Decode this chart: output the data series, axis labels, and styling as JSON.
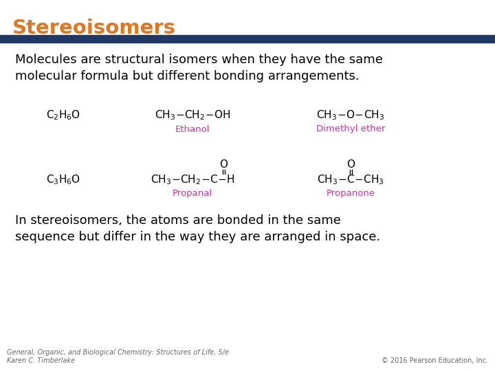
{
  "title": "Stereoisomers",
  "title_color": "#E07820",
  "header_bar_color": "#1F3864",
  "bg_color": "#FFFFFF",
  "body_text1": "Molecules are structural isomers when they have the same\nmolecular formula but different bonding arrangements.",
  "body_text2": "In stereoisomers, the atoms are bonded in the same\nsequence but differ in the way they are arranged in space.",
  "footer_left": "General, Organic, and Biological Chemistry: Structures of Life, 5/e\nKaren C. Timberlake",
  "footer_right": "© 2016 Pearson Education, Inc.",
  "pink_color": "#CC3399",
  "black_color": "#000000",
  "gray_color": "#666666"
}
